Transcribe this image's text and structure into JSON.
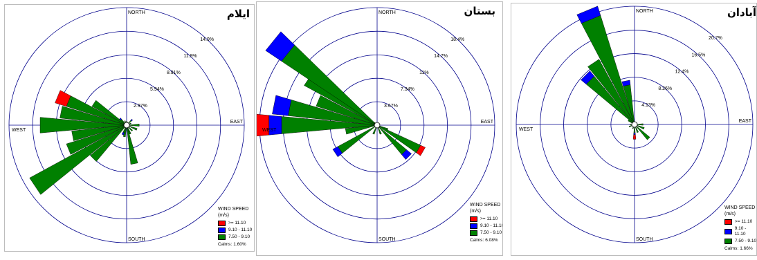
{
  "chart_data": [
    {
      "type": "wind-rose",
      "title": "ایلام",
      "north_label": "NORTH",
      "south_label": "SOUTH",
      "east_label": "EAST",
      "west_label": "WEST",
      "ring_labels": [
        "2.97%",
        "5.94%",
        "8.91%",
        "11.9%",
        "14.9%"
      ],
      "ring_values": [
        2.97,
        5.94,
        8.91,
        11.9,
        14.9
      ],
      "legend_title": "WIND SPEED (m/s)",
      "bins": [
        {
          "label": ">= 11.10",
          "color": "#ff0000"
        },
        {
          "label": "9.10 - 11.10",
          "color": "#0000ff"
        },
        {
          "label": "7.50 - 9.10",
          "color": "#008000"
        }
      ],
      "calms_label": "Calms:",
      "calms_value": "1.60%",
      "directions": [
        {
          "deg": 0,
          "values": [
            0,
            0,
            0.5
          ]
        },
        {
          "deg": 22.5,
          "values": [
            0,
            0,
            0.4
          ]
        },
        {
          "deg": 45,
          "values": [
            0,
            0.2,
            0.8
          ]
        },
        {
          "deg": 67.5,
          "values": [
            0,
            0,
            0.6
          ]
        },
        {
          "deg": 90,
          "values": [
            0,
            0,
            1.6
          ]
        },
        {
          "deg": 112.5,
          "values": [
            0,
            0,
            1.4
          ]
        },
        {
          "deg": 135,
          "values": [
            0,
            0,
            1.0
          ]
        },
        {
          "deg": 157.5,
          "values": [
            0,
            0,
            1.2
          ]
        },
        {
          "deg": 168.75,
          "values": [
            0,
            0,
            5.0
          ]
        },
        {
          "deg": 191.25,
          "values": [
            0,
            0,
            1.5
          ]
        },
        {
          "deg": 202.5,
          "values": [
            0,
            0.3,
            1.0
          ]
        },
        {
          "deg": 225,
          "values": [
            0,
            0,
            6.0
          ]
        },
        {
          "deg": 236.25,
          "values": [
            0,
            0,
            14.0
          ]
        },
        {
          "deg": 247.5,
          "values": [
            0,
            0,
            8.0
          ]
        },
        {
          "deg": 258.75,
          "values": [
            0,
            0,
            7.0
          ]
        },
        {
          "deg": 270,
          "values": [
            0,
            0,
            11.0
          ]
        },
        {
          "deg": 281.25,
          "values": [
            0,
            0,
            8.5
          ]
        },
        {
          "deg": 292.5,
          "values": [
            1.5,
            0,
            8.0
          ]
        },
        {
          "deg": 303.75,
          "values": [
            0,
            0,
            5.0
          ]
        },
        {
          "deg": 315,
          "values": [
            0,
            0.2,
            1.0
          ]
        },
        {
          "deg": 337.5,
          "values": [
            0,
            0,
            0.6
          ]
        }
      ]
    },
    {
      "type": "wind-rose",
      "title": "بستان",
      "north_label": "NORTH",
      "south_label": "SOUTH",
      "east_label": "EAST",
      "west_label": "WEST",
      "ring_labels": [
        "3.67%",
        "7.34%",
        "11%",
        "14.7%",
        "18.4%"
      ],
      "ring_values": [
        3.67,
        7.34,
        11.0,
        14.7,
        18.4
      ],
      "legend_title": "WIND SPEED (m/s)",
      "bins": [
        {
          "label": ">= 11.10",
          "color": "#ff0000"
        },
        {
          "label": "9.10 - 11.10",
          "color": "#0000ff"
        },
        {
          "label": "7.50 - 9.10",
          "color": "#008000"
        }
      ],
      "calms_label": "Calms:",
      "calms_value": "6.08%",
      "directions": [
        {
          "deg": 0,
          "values": [
            0,
            0,
            0.3
          ]
        },
        {
          "deg": 22.5,
          "values": [
            0,
            0,
            0.2
          ]
        },
        {
          "deg": 67.5,
          "values": [
            0,
            0,
            0.4
          ]
        },
        {
          "deg": 112.5,
          "values": [
            0,
            0,
            1.8
          ]
        },
        {
          "deg": 120,
          "values": [
            0.8,
            0,
            7.5
          ]
        },
        {
          "deg": 135,
          "values": [
            0,
            1.0,
            6.0
          ]
        },
        {
          "deg": 157.5,
          "values": [
            0,
            0,
            1.5
          ]
        },
        {
          "deg": 202.5,
          "values": [
            0,
            0,
            1.5
          ]
        },
        {
          "deg": 236.25,
          "values": [
            0,
            0.9,
            7.0
          ]
        },
        {
          "deg": 258.75,
          "values": [
            0,
            0,
            5.0
          ]
        },
        {
          "deg": 270,
          "values": [
            2.5,
            2.0,
            15.0
          ]
        },
        {
          "deg": 281.25,
          "values": [
            0,
            2.5,
            14.0
          ]
        },
        {
          "deg": 292.5,
          "values": [
            0,
            0,
            10.0
          ]
        },
        {
          "deg": 303.75,
          "values": [
            0,
            0,
            13.0
          ]
        },
        {
          "deg": 309,
          "values": [
            0,
            3.0,
            18.0
          ]
        },
        {
          "deg": 315,
          "values": [
            0,
            0,
            0.6
          ]
        },
        {
          "deg": 337.5,
          "values": [
            0,
            0,
            0.4
          ]
        }
      ]
    },
    {
      "type": "wind-rose",
      "title": "آبادان",
      "north_label": "NORTH",
      "south_label": "SOUTH",
      "east_label": "EAST",
      "west_label": "WEST",
      "ring_labels": [
        "4.13%",
        "8.26%",
        "12.4%",
        "16.5%",
        "20.7%"
      ],
      "ring_values": [
        4.13,
        8.26,
        12.4,
        16.5,
        20.7
      ],
      "legend_title": "WIND SPEED (m/s)",
      "bins": [
        {
          "label": ">= 11.10",
          "color": "#ff0000"
        },
        {
          "label": "9.10 - 11.10",
          "color": "#0000ff"
        },
        {
          "label": "7.50 - 9.10",
          "color": "#008000"
        }
      ],
      "calms_label": "Calms:",
      "calms_value": "1.66%",
      "directions": [
        {
          "deg": 0,
          "values": [
            0,
            0,
            0.5
          ]
        },
        {
          "deg": 22.5,
          "values": [
            0,
            0,
            0.5
          ]
        },
        {
          "deg": 90,
          "values": [
            0,
            0,
            1.5
          ]
        },
        {
          "deg": 112.5,
          "values": [
            0,
            0,
            1.8
          ]
        },
        {
          "deg": 135,
          "values": [
            0,
            0,
            3.5
          ]
        },
        {
          "deg": 157.5,
          "values": [
            0,
            0,
            1.5
          ]
        },
        {
          "deg": 180,
          "values": [
            0.8,
            0.3,
            1.5
          ]
        },
        {
          "deg": 202.5,
          "values": [
            0,
            0,
            0.8
          ]
        },
        {
          "deg": 247.5,
          "values": [
            0,
            0,
            1.0
          ]
        },
        {
          "deg": 270,
          "values": [
            0,
            0,
            0.8
          ]
        },
        {
          "deg": 303.75,
          "values": [
            0,
            0,
            1.3
          ]
        },
        {
          "deg": 315,
          "values": [
            0,
            1.2,
            11.0
          ]
        },
        {
          "deg": 326.25,
          "values": [
            0,
            0,
            13.0
          ]
        },
        {
          "deg": 337.5,
          "values": [
            0,
            1.7,
            20.0
          ]
        },
        {
          "deg": 348.75,
          "values": [
            0,
            0.8,
            7.0
          ]
        }
      ]
    }
  ]
}
